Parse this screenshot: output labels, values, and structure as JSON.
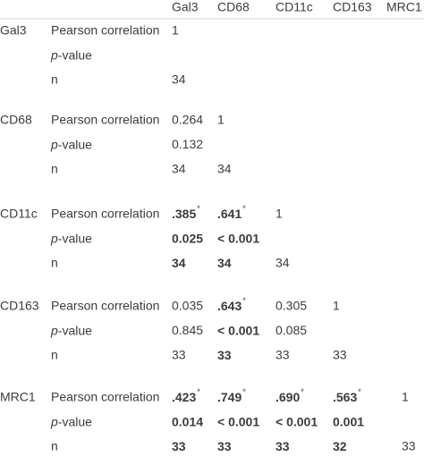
{
  "table": {
    "columns": [
      "Gal3",
      "CD68",
      "CD11c",
      "CD163",
      "MRC1"
    ],
    "groups": [
      {
        "label": "Gal3",
        "rows": [
          {
            "stat": "Pearson correlation",
            "cells": [
              "1"
            ]
          },
          {
            "stat": {
              "italic": "p",
              "text": "-value"
            },
            "cells": []
          },
          {
            "stat": "n",
            "cells": [
              "34"
            ]
          }
        ]
      },
      {
        "label": "CD68",
        "rows": [
          {
            "stat": "Pearson correlation",
            "cells": [
              "0.264",
              "1"
            ]
          },
          {
            "stat": {
              "italic": "p",
              "text": "-value"
            },
            "cells": [
              "0.132"
            ]
          },
          {
            "stat": "n",
            "cells": [
              "34",
              "34"
            ]
          }
        ]
      },
      {
        "label": "CD11c",
        "rows": [
          {
            "stat": "Pearson correlation",
            "cells": [
              {
                "text": ".385",
                "sup": "*",
                "bold": true
              },
              {
                "text": ".641",
                "sup": "*",
                "bold": true
              },
              "1"
            ]
          },
          {
            "stat": {
              "italic": "p",
              "text": "-value"
            },
            "cells": [
              {
                "text": "0.025",
                "bold": true
              },
              {
                "text": "< 0.001",
                "bold": true
              }
            ]
          },
          {
            "stat": "n",
            "cells": [
              {
                "text": "34",
                "bold": true
              },
              {
                "text": "34",
                "bold": true
              },
              "34"
            ]
          }
        ]
      },
      {
        "label": "CD163",
        "rows": [
          {
            "stat": "Pearson correlation",
            "cells": [
              "0.035",
              {
                "text": ".643",
                "sup": "*",
                "bold": true
              },
              "0.305",
              "1"
            ]
          },
          {
            "stat": {
              "italic": "p",
              "text": "-value"
            },
            "cells": [
              "0.845",
              {
                "text": "< 0.001",
                "bold": true
              },
              "0.085"
            ]
          },
          {
            "stat": "n",
            "cells": [
              "33",
              {
                "text": "33",
                "bold": true
              },
              "33",
              "33"
            ]
          }
        ]
      },
      {
        "label": "MRC1",
        "rows": [
          {
            "stat": "Pearson correlation",
            "cells": [
              {
                "text": ".423",
                "sup": "*",
                "bold": true
              },
              {
                "text": ".749",
                "sup": "*",
                "bold": true
              },
              {
                "text": ".690",
                "sup": "*",
                "bold": true
              },
              {
                "text": ".563",
                "sup": "*",
                "bold": true
              },
              "1"
            ]
          },
          {
            "stat": {
              "italic": "p",
              "text": "-value"
            },
            "cells": [
              {
                "text": "0.014",
                "bold": true
              },
              {
                "text": "< 0.001",
                "bold": true
              },
              {
                "text": "< 0.001",
                "bold": true
              },
              {
                "text": "0.001",
                "bold": true
              }
            ]
          },
          {
            "stat": "n",
            "cells": [
              {
                "text": "33",
                "bold": true
              },
              {
                "text": "33",
                "bold": true
              },
              {
                "text": "33",
                "bold": true
              },
              {
                "text": "32",
                "bold": true
              },
              "33"
            ]
          }
        ]
      }
    ]
  }
}
